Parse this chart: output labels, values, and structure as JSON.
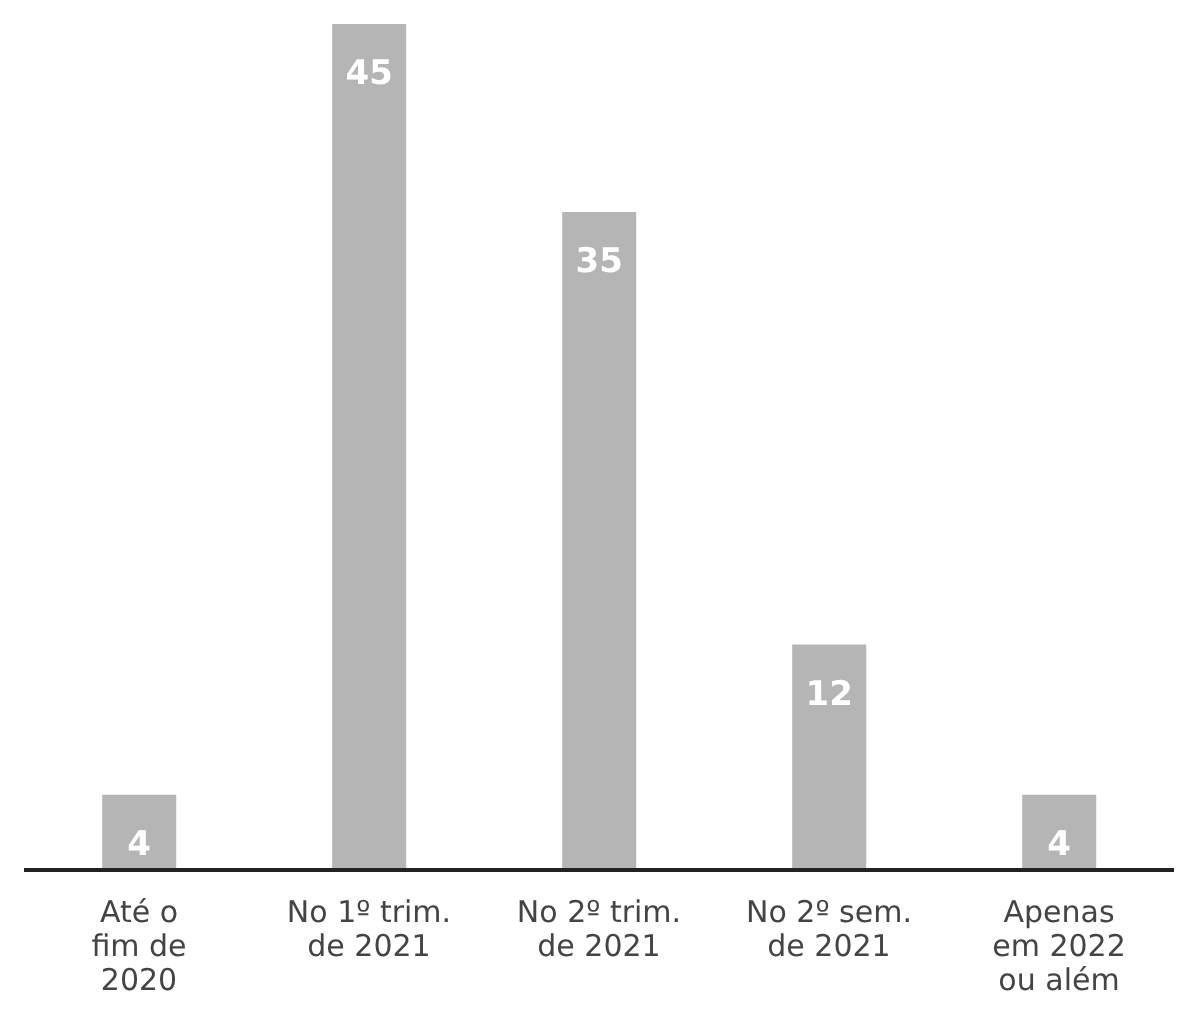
{
  "chart_data": {
    "type": "bar",
    "categories": [
      "Até o\nfim de\n2020",
      "No 1º trim.\nde 2021",
      "No 2º trim.\nde 2021",
      "No 2º sem.\nde 2021",
      "Apenas\nem 2022\nou além"
    ],
    "values": [
      4,
      45,
      35,
      12,
      4
    ],
    "color": "#b5b5b5",
    "data_labels": true,
    "grid": false
  }
}
